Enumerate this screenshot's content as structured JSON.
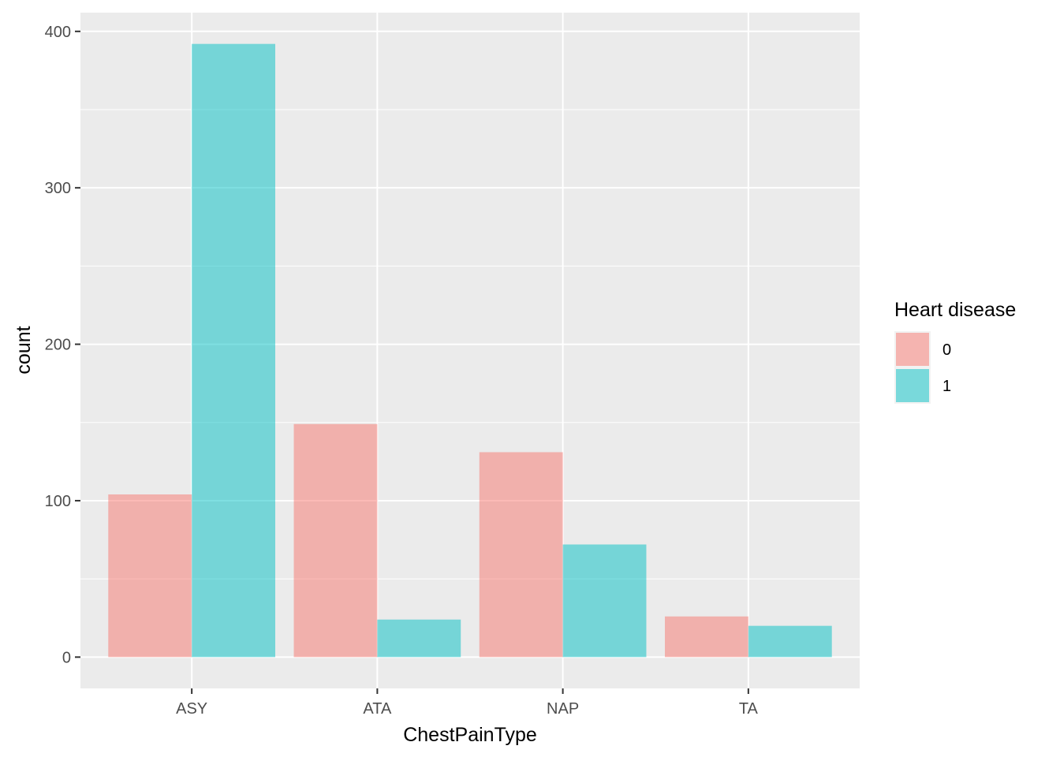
{
  "chart_data": {
    "type": "bar",
    "xlabel": "ChestPainType",
    "ylabel": "count",
    "categories": [
      "ASY",
      "ATA",
      "NAP",
      "TA"
    ],
    "series": [
      {
        "name": "0",
        "color": "#F8766D",
        "values": [
          104,
          149,
          131,
          26
        ]
      },
      {
        "name": "1",
        "color": "#00BFC4",
        "values": [
          392,
          24,
          72,
          20
        ]
      }
    ],
    "ylim": [
      -20,
      412
    ],
    "yticks": [
      0,
      100,
      200,
      300,
      400
    ],
    "grid": true,
    "bar_opacity": 0.5,
    "legend": {
      "title": "Heart disease",
      "position": "right"
    }
  }
}
